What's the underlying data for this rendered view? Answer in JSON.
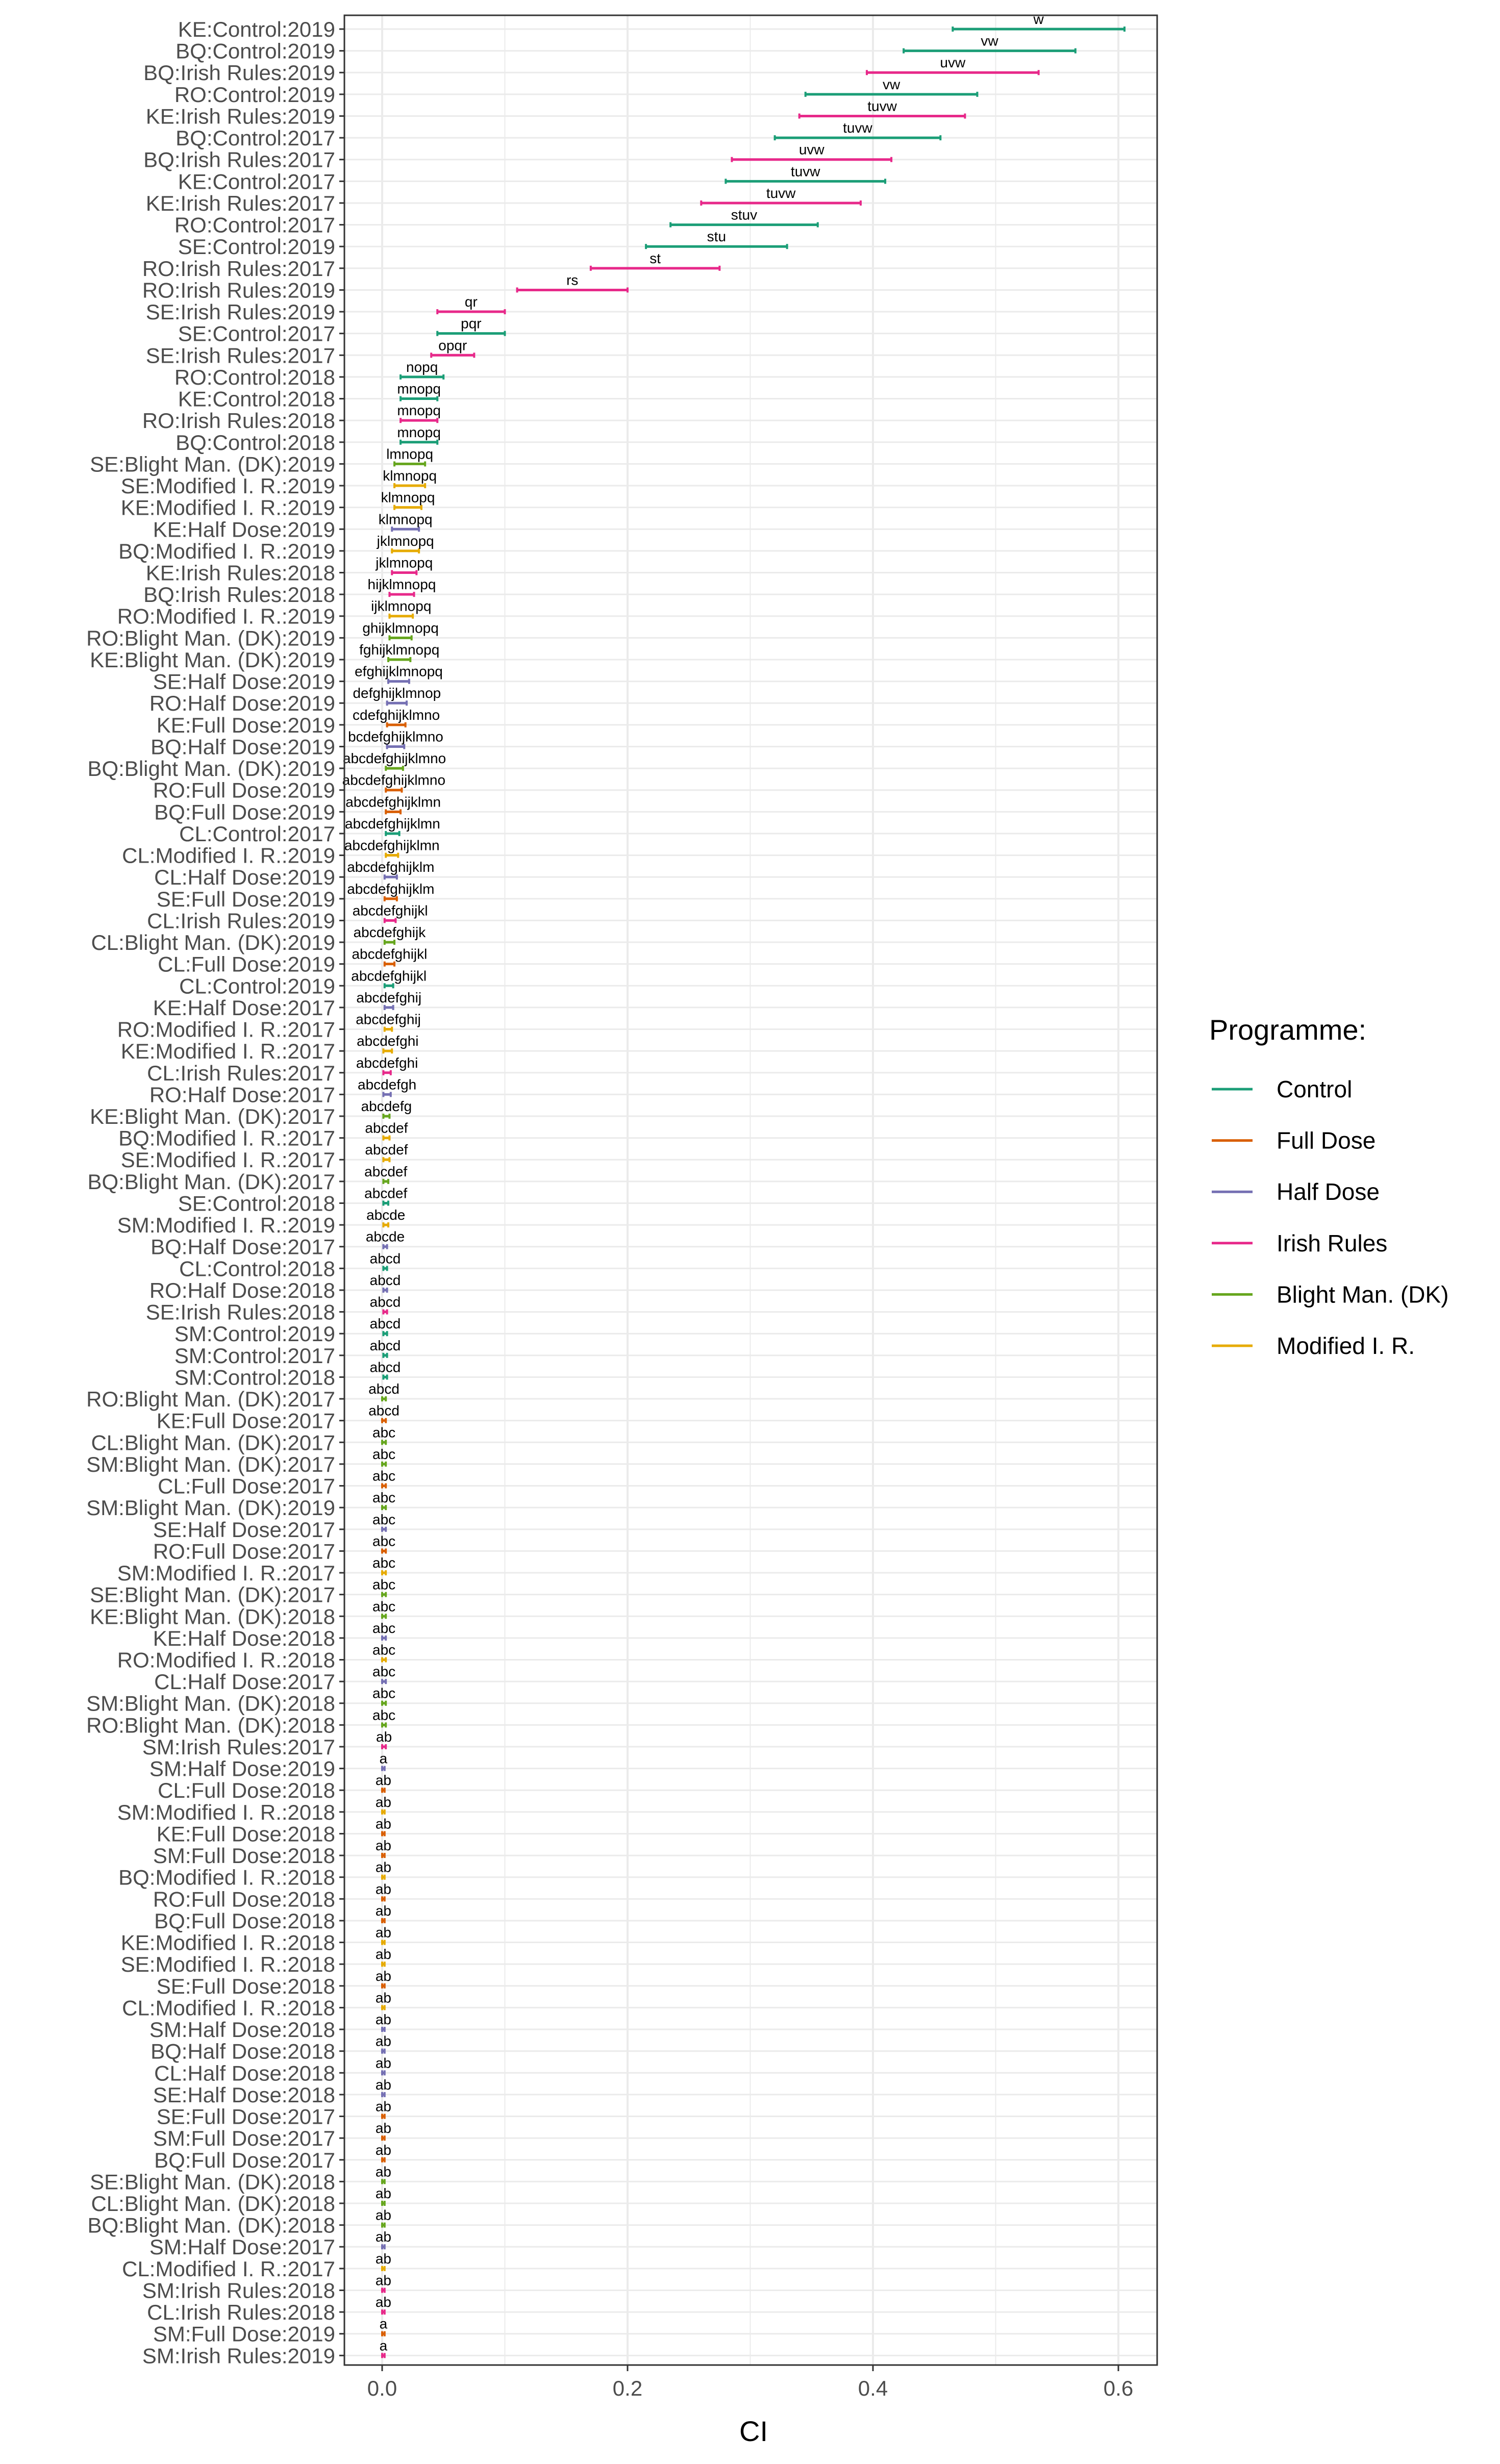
{
  "chart_data": {
    "type": "interval",
    "xlabel": "CI",
    "xlim": [
      -0.03,
      0.63
    ],
    "xticks": [
      0.0,
      0.2,
      0.4,
      0.6
    ],
    "xtick_labels": [
      "0.0",
      "0.2",
      "0.4",
      "0.6"
    ],
    "grid": true,
    "legend": {
      "title": "Programme:",
      "placement": "right",
      "entries": [
        {
          "name": "Control",
          "color": "#1b9e77"
        },
        {
          "name": "Full Dose",
          "color": "#d95f02"
        },
        {
          "name": "Half Dose",
          "color": "#7570b3"
        },
        {
          "name": "Irish Rules",
          "color": "#e7298a"
        },
        {
          "name": "Blight Man. (DK)",
          "color": "#66a61e"
        },
        {
          "name": "Modified I. R.",
          "color": "#e6ab02"
        }
      ]
    },
    "rows": [
      {
        "label": "KE:Control:2019",
        "programme": "Control",
        "lo": 0.465,
        "hi": 0.605,
        "letters": "w"
      },
      {
        "label": "BQ:Control:2019",
        "programme": "Control",
        "lo": 0.425,
        "hi": 0.565,
        "letters": "vw"
      },
      {
        "label": "BQ:Irish Rules:2019",
        "programme": "Irish Rules",
        "lo": 0.395,
        "hi": 0.535,
        "letters": "uvw"
      },
      {
        "label": "RO:Control:2019",
        "programme": "Control",
        "lo": 0.345,
        "hi": 0.485,
        "letters": "vw"
      },
      {
        "label": "KE:Irish Rules:2019",
        "programme": "Irish Rules",
        "lo": 0.34,
        "hi": 0.475,
        "letters": "tuvw"
      },
      {
        "label": "BQ:Control:2017",
        "programme": "Control",
        "lo": 0.32,
        "hi": 0.455,
        "letters": "tuvw"
      },
      {
        "label": "BQ:Irish Rules:2017",
        "programme": "Irish Rules",
        "lo": 0.285,
        "hi": 0.415,
        "letters": "uvw"
      },
      {
        "label": "KE:Control:2017",
        "programme": "Control",
        "lo": 0.28,
        "hi": 0.41,
        "letters": "tuvw"
      },
      {
        "label": "KE:Irish Rules:2017",
        "programme": "Irish Rules",
        "lo": 0.26,
        "hi": 0.39,
        "letters": "tuvw"
      },
      {
        "label": "RO:Control:2017",
        "programme": "Control",
        "lo": 0.235,
        "hi": 0.355,
        "letters": "stuv"
      },
      {
        "label": "SE:Control:2019",
        "programme": "Control",
        "lo": 0.215,
        "hi": 0.33,
        "letters": "stu"
      },
      {
        "label": "RO:Irish Rules:2017",
        "programme": "Irish Rules",
        "lo": 0.17,
        "hi": 0.275,
        "letters": "st"
      },
      {
        "label": "RO:Irish Rules:2019",
        "programme": "Irish Rules",
        "lo": 0.11,
        "hi": 0.2,
        "letters": "rs"
      },
      {
        "label": "SE:Irish Rules:2019",
        "programme": "Irish Rules",
        "lo": 0.045,
        "hi": 0.1,
        "letters": "qr"
      },
      {
        "label": "SE:Control:2017",
        "programme": "Control",
        "lo": 0.045,
        "hi": 0.1,
        "letters": "pqr"
      },
      {
        "label": "SE:Irish Rules:2017",
        "programme": "Irish Rules",
        "lo": 0.04,
        "hi": 0.075,
        "letters": "opqr"
      },
      {
        "label": "RO:Control:2018",
        "programme": "Control",
        "lo": 0.015,
        "hi": 0.05,
        "letters": "nopq"
      },
      {
        "label": "KE:Control:2018",
        "programme": "Control",
        "lo": 0.015,
        "hi": 0.045,
        "letters": "mnopq"
      },
      {
        "label": "RO:Irish Rules:2018",
        "programme": "Irish Rules",
        "lo": 0.015,
        "hi": 0.045,
        "letters": "mnopq"
      },
      {
        "label": "BQ:Control:2018",
        "programme": "Control",
        "lo": 0.015,
        "hi": 0.045,
        "letters": "mnopq"
      },
      {
        "label": "SE:Blight Man. (DK):2019",
        "programme": "Blight Man. (DK)",
        "lo": 0.01,
        "hi": 0.035,
        "letters": "lmnopq"
      },
      {
        "label": "SE:Modified I. R.:2019",
        "programme": "Modified I. R.",
        "lo": 0.01,
        "hi": 0.035,
        "letters": "klmnopq"
      },
      {
        "label": "KE:Modified I. R.:2019",
        "programme": "Modified I. R.",
        "lo": 0.01,
        "hi": 0.032,
        "letters": "klmnopq"
      },
      {
        "label": "KE:Half Dose:2019",
        "programme": "Half Dose",
        "lo": 0.008,
        "hi": 0.03,
        "letters": "klmnopq"
      },
      {
        "label": "BQ:Modified I. R.:2019",
        "programme": "Modified I. R.",
        "lo": 0.008,
        "hi": 0.03,
        "letters": "jklmnopq"
      },
      {
        "label": "KE:Irish Rules:2018",
        "programme": "Irish Rules",
        "lo": 0.008,
        "hi": 0.028,
        "letters": "jklmnopq"
      },
      {
        "label": "BQ:Irish Rules:2018",
        "programme": "Irish Rules",
        "lo": 0.006,
        "hi": 0.026,
        "letters": "hijklmnopq"
      },
      {
        "label": "RO:Modified I. R.:2019",
        "programme": "Modified I. R.",
        "lo": 0.006,
        "hi": 0.025,
        "letters": "ijklmnopq"
      },
      {
        "label": "RO:Blight Man. (DK):2019",
        "programme": "Blight Man. (DK)",
        "lo": 0.006,
        "hi": 0.024,
        "letters": "ghijklmnopq"
      },
      {
        "label": "KE:Blight Man. (DK):2019",
        "programme": "Blight Man. (DK)",
        "lo": 0.005,
        "hi": 0.023,
        "letters": "fghijklmnopq"
      },
      {
        "label": "SE:Half Dose:2019",
        "programme": "Half Dose",
        "lo": 0.005,
        "hi": 0.022,
        "letters": "efghijklmnopq"
      },
      {
        "label": "RO:Half Dose:2019",
        "programme": "Half Dose",
        "lo": 0.004,
        "hi": 0.02,
        "letters": "defghijklmnop"
      },
      {
        "label": "KE:Full Dose:2019",
        "programme": "Full Dose",
        "lo": 0.004,
        "hi": 0.019,
        "letters": "cdefghijklmno"
      },
      {
        "label": "BQ:Half Dose:2019",
        "programme": "Half Dose",
        "lo": 0.004,
        "hi": 0.018,
        "letters": "bcdefghijklmno"
      },
      {
        "label": "BQ:Blight Man. (DK):2019",
        "programme": "Blight Man. (DK)",
        "lo": 0.003,
        "hi": 0.017,
        "letters": "abcdefghijklmno"
      },
      {
        "label": "RO:Full Dose:2019",
        "programme": "Full Dose",
        "lo": 0.003,
        "hi": 0.016,
        "letters": "abcdefghijklmno"
      },
      {
        "label": "BQ:Full Dose:2019",
        "programme": "Full Dose",
        "lo": 0.003,
        "hi": 0.015,
        "letters": "abcdefghijklmn"
      },
      {
        "label": "CL:Control:2017",
        "programme": "Control",
        "lo": 0.003,
        "hi": 0.014,
        "letters": "abcdefghijklmn"
      },
      {
        "label": "CL:Modified I. R.:2019",
        "programme": "Modified I. R.",
        "lo": 0.003,
        "hi": 0.013,
        "letters": "abcdefghijklmn"
      },
      {
        "label": "CL:Half Dose:2019",
        "programme": "Half Dose",
        "lo": 0.002,
        "hi": 0.012,
        "letters": "abcdefghijklm"
      },
      {
        "label": "SE:Full Dose:2019",
        "programme": "Full Dose",
        "lo": 0.002,
        "hi": 0.012,
        "letters": "abcdefghijklm"
      },
      {
        "label": "CL:Irish Rules:2019",
        "programme": "Irish Rules",
        "lo": 0.002,
        "hi": 0.011,
        "letters": "abcdefghijkl"
      },
      {
        "label": "CL:Blight Man. (DK):2019",
        "programme": "Blight Man. (DK)",
        "lo": 0.002,
        "hi": 0.01,
        "letters": "abcdefghijk"
      },
      {
        "label": "CL:Full Dose:2019",
        "programme": "Full Dose",
        "lo": 0.002,
        "hi": 0.01,
        "letters": "abcdefghijkl"
      },
      {
        "label": "CL:Control:2019",
        "programme": "Control",
        "lo": 0.002,
        "hi": 0.009,
        "letters": "abcdefghijkl"
      },
      {
        "label": "KE:Half Dose:2017",
        "programme": "Half Dose",
        "lo": 0.002,
        "hi": 0.009,
        "letters": "abcdefghij"
      },
      {
        "label": "RO:Modified I. R.:2017",
        "programme": "Modified I. R.",
        "lo": 0.002,
        "hi": 0.008,
        "letters": "abcdefghij"
      },
      {
        "label": "KE:Modified I. R.:2017",
        "programme": "Modified I. R.",
        "lo": 0.001,
        "hi": 0.008,
        "letters": "abcdefghi"
      },
      {
        "label": "CL:Irish Rules:2017",
        "programme": "Irish Rules",
        "lo": 0.001,
        "hi": 0.007,
        "letters": "abcdefghi"
      },
      {
        "label": "RO:Half Dose:2017",
        "programme": "Half Dose",
        "lo": 0.001,
        "hi": 0.007,
        "letters": "abcdefgh"
      },
      {
        "label": "KE:Blight Man. (DK):2017",
        "programme": "Blight Man. (DK)",
        "lo": 0.001,
        "hi": 0.006,
        "letters": "abcdefg"
      },
      {
        "label": "BQ:Modified I. R.:2017",
        "programme": "Modified I. R.",
        "lo": 0.001,
        "hi": 0.006,
        "letters": "abcdef"
      },
      {
        "label": "SE:Modified I. R.:2017",
        "programme": "Modified I. R.",
        "lo": 0.001,
        "hi": 0.006,
        "letters": "abcdef"
      },
      {
        "label": "BQ:Blight Man. (DK):2017",
        "programme": "Blight Man. (DK)",
        "lo": 0.001,
        "hi": 0.005,
        "letters": "abcdef"
      },
      {
        "label": "SE:Control:2018",
        "programme": "Control",
        "lo": 0.001,
        "hi": 0.005,
        "letters": "abcdef"
      },
      {
        "label": "SM:Modified I. R.:2019",
        "programme": "Modified I. R.",
        "lo": 0.001,
        "hi": 0.005,
        "letters": "abcde"
      },
      {
        "label": "BQ:Half Dose:2017",
        "programme": "Half Dose",
        "lo": 0.001,
        "hi": 0.004,
        "letters": "abcde"
      },
      {
        "label": "CL:Control:2018",
        "programme": "Control",
        "lo": 0.001,
        "hi": 0.004,
        "letters": "abcd"
      },
      {
        "label": "RO:Half Dose:2018",
        "programme": "Half Dose",
        "lo": 0.001,
        "hi": 0.004,
        "letters": "abcd"
      },
      {
        "label": "SE:Irish Rules:2018",
        "programme": "Irish Rules",
        "lo": 0.001,
        "hi": 0.004,
        "letters": "abcd"
      },
      {
        "label": "SM:Control:2019",
        "programme": "Control",
        "lo": 0.001,
        "hi": 0.004,
        "letters": "abcd"
      },
      {
        "label": "SM:Control:2017",
        "programme": "Control",
        "lo": 0.001,
        "hi": 0.004,
        "letters": "abcd"
      },
      {
        "label": "SM:Control:2018",
        "programme": "Control",
        "lo": 0.001,
        "hi": 0.004,
        "letters": "abcd"
      },
      {
        "label": "RO:Blight Man. (DK):2017",
        "programme": "Blight Man. (DK)",
        "lo": 0.0,
        "hi": 0.003,
        "letters": "abcd"
      },
      {
        "label": "KE:Full Dose:2017",
        "programme": "Full Dose",
        "lo": 0.0,
        "hi": 0.003,
        "letters": "abcd"
      },
      {
        "label": "CL:Blight Man. (DK):2017",
        "programme": "Blight Man. (DK)",
        "lo": 0.0,
        "hi": 0.003,
        "letters": "abc"
      },
      {
        "label": "SM:Blight Man. (DK):2017",
        "programme": "Blight Man. (DK)",
        "lo": 0.0,
        "hi": 0.003,
        "letters": "abc"
      },
      {
        "label": "CL:Full Dose:2017",
        "programme": "Full Dose",
        "lo": 0.0,
        "hi": 0.003,
        "letters": "abc"
      },
      {
        "label": "SM:Blight Man. (DK):2019",
        "programme": "Blight Man. (DK)",
        "lo": 0.0,
        "hi": 0.003,
        "letters": "abc"
      },
      {
        "label": "SE:Half Dose:2017",
        "programme": "Half Dose",
        "lo": 0.0,
        "hi": 0.003,
        "letters": "abc"
      },
      {
        "label": "RO:Full Dose:2017",
        "programme": "Full Dose",
        "lo": 0.0,
        "hi": 0.003,
        "letters": "abc"
      },
      {
        "label": "SM:Modified I. R.:2017",
        "programme": "Modified I. R.",
        "lo": 0.0,
        "hi": 0.003,
        "letters": "abc"
      },
      {
        "label": "SE:Blight Man. (DK):2017",
        "programme": "Blight Man. (DK)",
        "lo": 0.0,
        "hi": 0.003,
        "letters": "abc"
      },
      {
        "label": "KE:Blight Man. (DK):2018",
        "programme": "Blight Man. (DK)",
        "lo": 0.0,
        "hi": 0.003,
        "letters": "abc"
      },
      {
        "label": "KE:Half Dose:2018",
        "programme": "Half Dose",
        "lo": 0.0,
        "hi": 0.003,
        "letters": "abc"
      },
      {
        "label": "RO:Modified I. R.:2018",
        "programme": "Modified I. R.",
        "lo": 0.0,
        "hi": 0.003,
        "letters": "abc"
      },
      {
        "label": "CL:Half Dose:2017",
        "programme": "Half Dose",
        "lo": 0.0,
        "hi": 0.003,
        "letters": "abc"
      },
      {
        "label": "SM:Blight Man. (DK):2018",
        "programme": "Blight Man. (DK)",
        "lo": 0.0,
        "hi": 0.003,
        "letters": "abc"
      },
      {
        "label": "RO:Blight Man. (DK):2018",
        "programme": "Blight Man. (DK)",
        "lo": 0.0,
        "hi": 0.003,
        "letters": "abc"
      },
      {
        "label": "SM:Irish Rules:2017",
        "programme": "Irish Rules",
        "lo": 0.0,
        "hi": 0.003,
        "letters": "ab"
      },
      {
        "label": "SM:Half Dose:2019",
        "programme": "Half Dose",
        "lo": 0.0,
        "hi": 0.002,
        "letters": "a"
      },
      {
        "label": "CL:Full Dose:2018",
        "programme": "Full Dose",
        "lo": 0.0,
        "hi": 0.002,
        "letters": "ab"
      },
      {
        "label": "SM:Modified I. R.:2018",
        "programme": "Modified I. R.",
        "lo": 0.0,
        "hi": 0.002,
        "letters": "ab"
      },
      {
        "label": "KE:Full Dose:2018",
        "programme": "Full Dose",
        "lo": 0.0,
        "hi": 0.002,
        "letters": "ab"
      },
      {
        "label": "SM:Full Dose:2018",
        "programme": "Full Dose",
        "lo": 0.0,
        "hi": 0.002,
        "letters": "ab"
      },
      {
        "label": "BQ:Modified I. R.:2018",
        "programme": "Modified I. R.",
        "lo": 0.0,
        "hi": 0.002,
        "letters": "ab"
      },
      {
        "label": "RO:Full Dose:2018",
        "programme": "Full Dose",
        "lo": 0.0,
        "hi": 0.002,
        "letters": "ab"
      },
      {
        "label": "BQ:Full Dose:2018",
        "programme": "Full Dose",
        "lo": 0.0,
        "hi": 0.002,
        "letters": "ab"
      },
      {
        "label": "KE:Modified I. R.:2018",
        "programme": "Modified I. R.",
        "lo": 0.0,
        "hi": 0.002,
        "letters": "ab"
      },
      {
        "label": "SE:Modified I. R.:2018",
        "programme": "Modified I. R.",
        "lo": 0.0,
        "hi": 0.002,
        "letters": "ab"
      },
      {
        "label": "SE:Full Dose:2018",
        "programme": "Full Dose",
        "lo": 0.0,
        "hi": 0.002,
        "letters": "ab"
      },
      {
        "label": "CL:Modified I. R.:2018",
        "programme": "Modified I. R.",
        "lo": 0.0,
        "hi": 0.002,
        "letters": "ab"
      },
      {
        "label": "SM:Half Dose:2018",
        "programme": "Half Dose",
        "lo": 0.0,
        "hi": 0.002,
        "letters": "ab"
      },
      {
        "label": "BQ:Half Dose:2018",
        "programme": "Half Dose",
        "lo": 0.0,
        "hi": 0.002,
        "letters": "ab"
      },
      {
        "label": "CL:Half Dose:2018",
        "programme": "Half Dose",
        "lo": 0.0,
        "hi": 0.002,
        "letters": "ab"
      },
      {
        "label": "SE:Half Dose:2018",
        "programme": "Half Dose",
        "lo": 0.0,
        "hi": 0.002,
        "letters": "ab"
      },
      {
        "label": "SE:Full Dose:2017",
        "programme": "Full Dose",
        "lo": 0.0,
        "hi": 0.002,
        "letters": "ab"
      },
      {
        "label": "SM:Full Dose:2017",
        "programme": "Full Dose",
        "lo": 0.0,
        "hi": 0.002,
        "letters": "ab"
      },
      {
        "label": "BQ:Full Dose:2017",
        "programme": "Full Dose",
        "lo": 0.0,
        "hi": 0.002,
        "letters": "ab"
      },
      {
        "label": "SE:Blight Man. (DK):2018",
        "programme": "Blight Man. (DK)",
        "lo": 0.0,
        "hi": 0.002,
        "letters": "ab"
      },
      {
        "label": "CL:Blight Man. (DK):2018",
        "programme": "Blight Man. (DK)",
        "lo": 0.0,
        "hi": 0.002,
        "letters": "ab"
      },
      {
        "label": "BQ:Blight Man. (DK):2018",
        "programme": "Blight Man. (DK)",
        "lo": 0.0,
        "hi": 0.002,
        "letters": "ab"
      },
      {
        "label": "SM:Half Dose:2017",
        "programme": "Half Dose",
        "lo": 0.0,
        "hi": 0.002,
        "letters": "ab"
      },
      {
        "label": "CL:Modified I. R.:2017",
        "programme": "Modified I. R.",
        "lo": 0.0,
        "hi": 0.002,
        "letters": "ab"
      },
      {
        "label": "SM:Irish Rules:2018",
        "programme": "Irish Rules",
        "lo": 0.0,
        "hi": 0.002,
        "letters": "ab"
      },
      {
        "label": "CL:Irish Rules:2018",
        "programme": "Irish Rules",
        "lo": 0.0,
        "hi": 0.002,
        "letters": "ab"
      },
      {
        "label": "SM:Full Dose:2019",
        "programme": "Full Dose",
        "lo": 0.0,
        "hi": 0.002,
        "letters": "a"
      },
      {
        "label": "SM:Irish Rules:2019",
        "programme": "Irish Rules",
        "lo": 0.0,
        "hi": 0.002,
        "letters": "a"
      }
    ]
  }
}
